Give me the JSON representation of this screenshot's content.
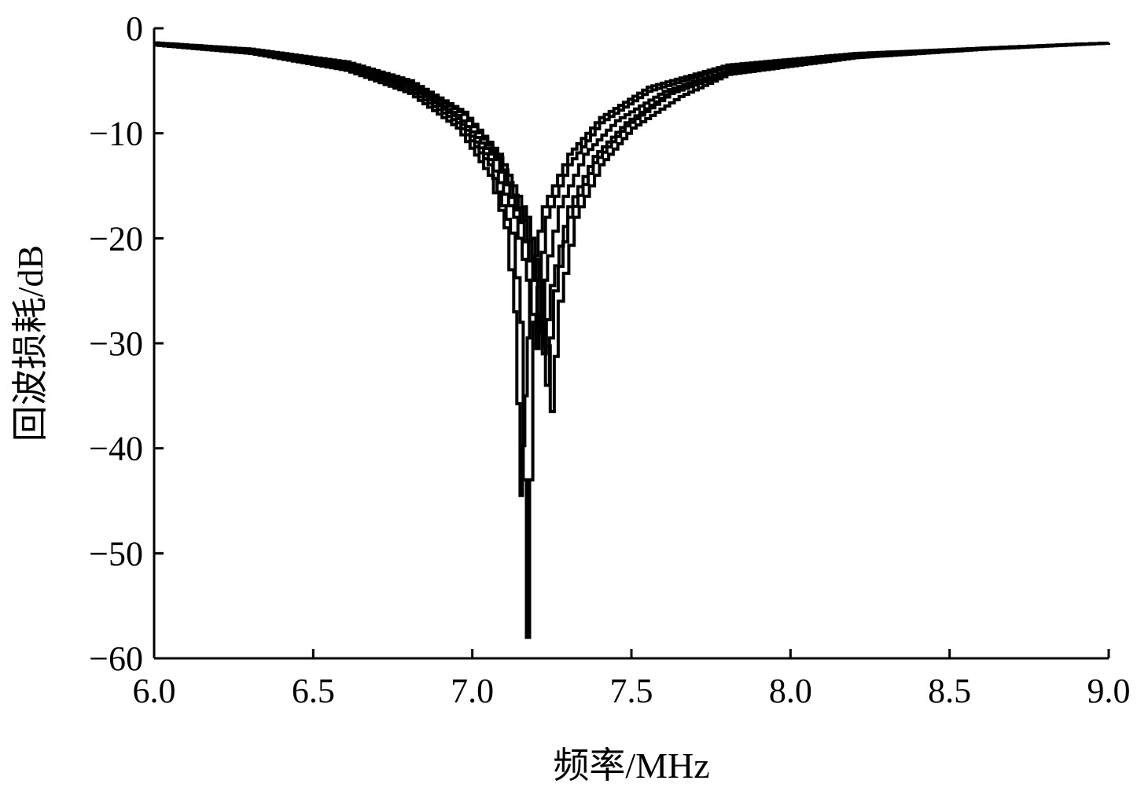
{
  "chart_data": {
    "type": "line",
    "title": "",
    "xlabel": "频率/MHz",
    "ylabel": "回波损耗/dB",
    "xlim": [
      6.0,
      9.0
    ],
    "ylim": [
      -60,
      0
    ],
    "xticks": [
      "6.0",
      "6.5",
      "7.0",
      "7.5",
      "8.0",
      "8.5",
      "9.0"
    ],
    "yticks": [
      "0",
      "−10",
      "−20",
      "−30",
      "−40",
      "−50",
      "−60"
    ],
    "grid": false,
    "legend": "none",
    "line_color": "#000000",
    "series": [
      {
        "x": [
          6.0,
          6.3,
          6.6,
          6.8,
          6.95,
          7.05,
          7.1,
          7.13,
          7.15,
          7.165,
          7.18,
          7.22,
          7.3,
          7.4,
          7.55,
          7.8,
          8.2,
          8.6,
          9.0
        ],
        "y": [
          -1.6,
          -2.4,
          -4.0,
          -6.2,
          -9.5,
          -14.0,
          -19.0,
          -27.0,
          -44.5,
          -35.0,
          -24.0,
          -17.0,
          -12.0,
          -8.5,
          -5.6,
          -3.5,
          -2.4,
          -1.9,
          -1.4
        ]
      },
      {
        "x": [
          6.0,
          6.3,
          6.6,
          6.8,
          6.95,
          7.05,
          7.12,
          7.15,
          7.17,
          7.19,
          7.23,
          7.3,
          7.4,
          7.55,
          7.8,
          8.2,
          8.6,
          9.0
        ],
        "y": [
          -1.5,
          -2.3,
          -3.8,
          -5.9,
          -9.0,
          -13.0,
          -19.5,
          -28.0,
          -58.0,
          -28.0,
          -18.0,
          -13.0,
          -9.0,
          -6.0,
          -3.7,
          -2.5,
          -1.9,
          -1.4
        ]
      },
      {
        "x": [
          6.0,
          6.3,
          6.6,
          6.8,
          6.95,
          7.05,
          7.13,
          7.17,
          7.2,
          7.22,
          7.27,
          7.35,
          7.45,
          7.6,
          7.8,
          8.2,
          8.6,
          9.0
        ],
        "y": [
          -1.5,
          -2.2,
          -3.6,
          -5.6,
          -8.6,
          -12.5,
          -18.0,
          -24.0,
          -30.5,
          -24.0,
          -17.0,
          -12.0,
          -8.8,
          -6.0,
          -4.0,
          -2.6,
          -1.9,
          -1.4
        ]
      },
      {
        "x": [
          6.0,
          6.3,
          6.6,
          6.8,
          6.95,
          7.07,
          7.15,
          7.19,
          7.22,
          7.245,
          7.3,
          7.38,
          7.48,
          7.62,
          7.8,
          8.2,
          8.6,
          9.0
        ],
        "y": [
          -1.5,
          -2.1,
          -3.5,
          -5.4,
          -8.3,
          -12.5,
          -18.5,
          -24.0,
          -31.0,
          -24.5,
          -17.0,
          -12.2,
          -9.0,
          -6.0,
          -4.1,
          -2.6,
          -1.9,
          -1.4
        ]
      },
      {
        "x": [
          6.0,
          6.3,
          6.6,
          6.8,
          6.97,
          7.08,
          7.16,
          7.2,
          7.23,
          7.255,
          7.3,
          7.38,
          7.48,
          7.62,
          7.8,
          8.2,
          8.6,
          9.0
        ],
        "y": [
          -1.4,
          -2.0,
          -3.3,
          -5.2,
          -8.2,
          -12.3,
          -18.3,
          -24.0,
          -34.0,
          -25.0,
          -18.0,
          -12.8,
          -9.3,
          -6.2,
          -4.3,
          -2.7,
          -1.9,
          -1.4
        ]
      },
      {
        "x": [
          6.0,
          6.3,
          6.6,
          6.8,
          6.97,
          7.08,
          7.17,
          7.21,
          7.245,
          7.27,
          7.32,
          7.4,
          7.5,
          7.65,
          7.8,
          8.2,
          8.6,
          9.0
        ],
        "y": [
          -1.4,
          -2.0,
          -3.2,
          -5.0,
          -8.0,
          -12.0,
          -18.0,
          -24.0,
          -36.5,
          -26.0,
          -18.0,
          -13.0,
          -9.5,
          -6.5,
          -4.4,
          -2.8,
          -2.0,
          -1.4
        ]
      }
    ]
  }
}
